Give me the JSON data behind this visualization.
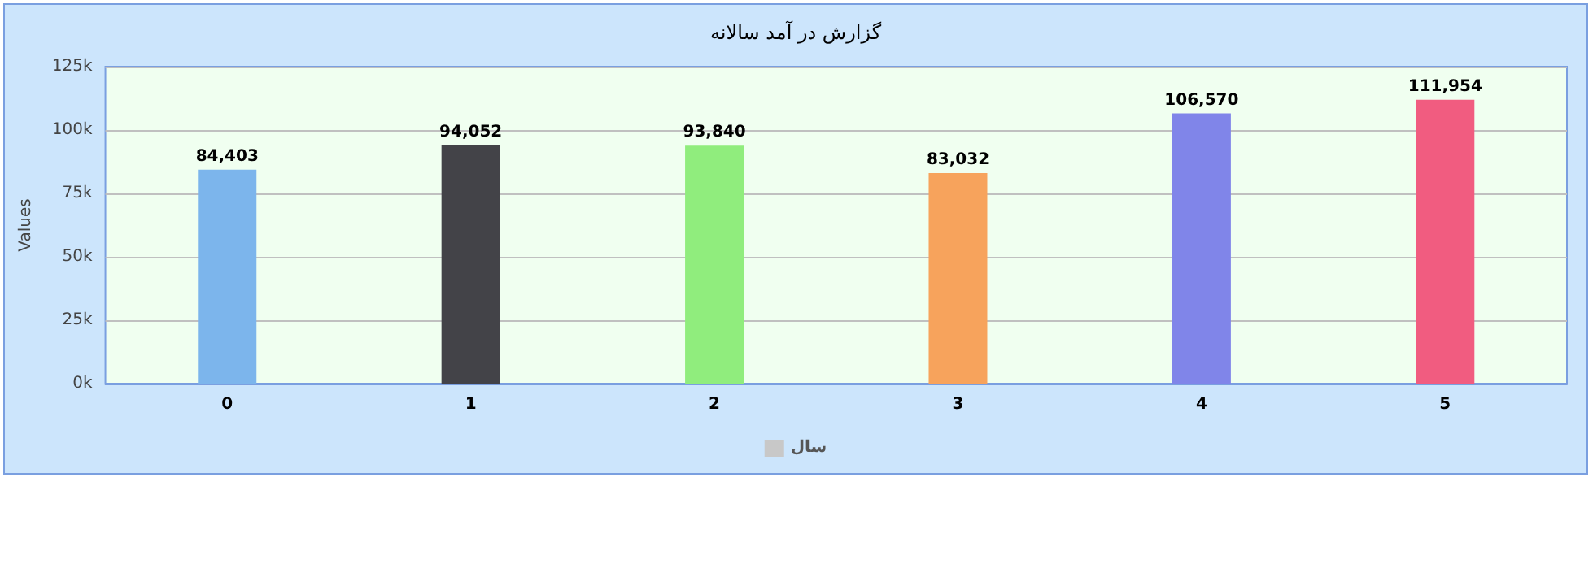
{
  "chart_data": {
    "type": "bar",
    "title": "گزارش در آمد سالانه",
    "ylabel": "Values",
    "categories": [
      "0",
      "1",
      "2",
      "3",
      "4",
      "5"
    ],
    "series": [
      {
        "name": "سال",
        "color": "#c8c8c8",
        "colors": [
          "#7cb5ec",
          "#434348",
          "#90ed7d",
          "#f7a35c",
          "#8085e9",
          "#f15c80"
        ],
        "values": [
          84403,
          94052,
          93840,
          83032,
          106570,
          111954
        ],
        "value_labels": [
          "84,403",
          "94,052",
          "93,840",
          "83,032",
          "106,570",
          "111,954"
        ]
      }
    ],
    "ylim": [
      0,
      125000
    ],
    "yticks": [
      {
        "value": 0,
        "label": "0k"
      },
      {
        "value": 25000,
        "label": "25k"
      },
      {
        "value": 50000,
        "label": "50k"
      },
      {
        "value": 75000,
        "label": "75k"
      },
      {
        "value": 100000,
        "label": "100k"
      },
      {
        "value": 125000,
        "label": "125k"
      }
    ],
    "grid": "y",
    "legend": "bottom"
  }
}
